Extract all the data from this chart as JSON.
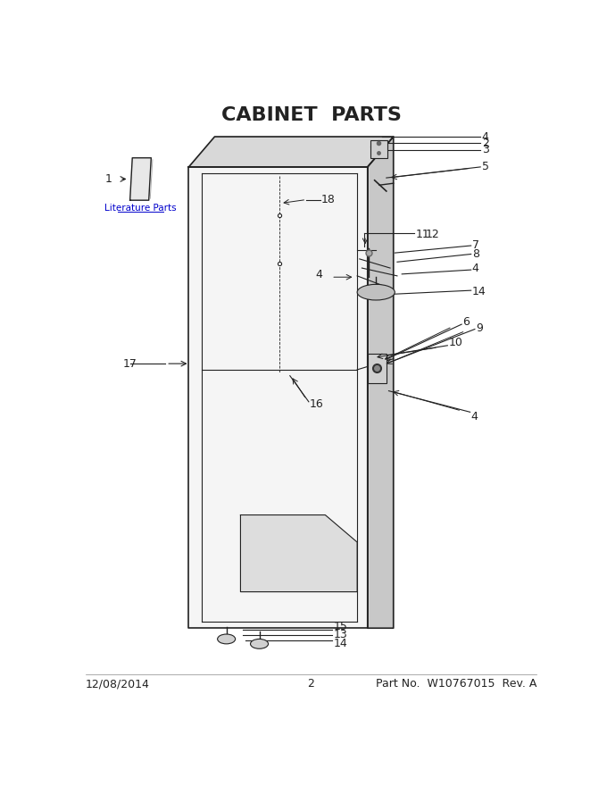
{
  "title": "CABINET  PARTS",
  "title_fontsize": 16,
  "title_fontweight": "bold",
  "footer_left": "12/08/2014",
  "footer_center": "2",
  "footer_right": "Part No.  W10767015  Rev. A",
  "footer_fontsize": 9,
  "bg_color": "#ffffff",
  "line_color": "#222222",
  "label_fontsize": 9,
  "lit_label": "Literature Parts"
}
